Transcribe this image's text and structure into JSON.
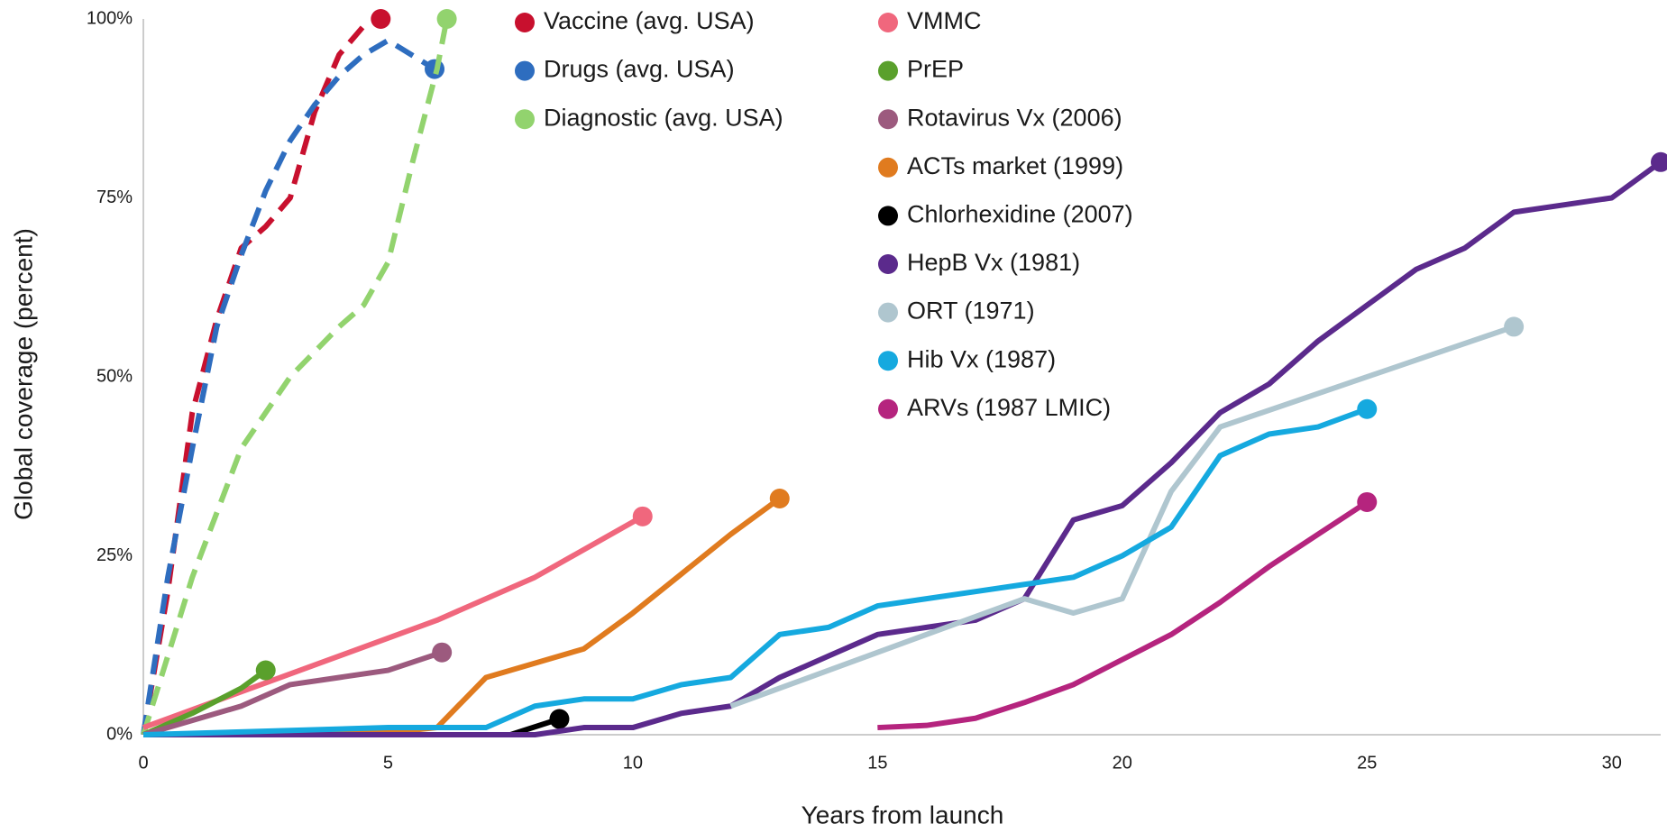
{
  "chart_data": {
    "type": "line",
    "xlabel": "Years from launch",
    "ylabel": "Global coverage (percent)",
    "xlim": [
      0,
      31
    ],
    "ylim": [
      0,
      100
    ],
    "xticks": [
      0,
      5,
      10,
      15,
      20,
      25,
      30
    ],
    "yticks": [
      {
        "value": 0,
        "label": "0%"
      },
      {
        "value": 25,
        "label": "25%"
      },
      {
        "value": 50,
        "label": "50%"
      },
      {
        "value": 75,
        "label": "75%"
      },
      {
        "value": 100,
        "label": "100%"
      }
    ],
    "grid": false,
    "legend": "top",
    "series": [
      {
        "name": "Vaccine (avg. USA)",
        "color": "#c8102e",
        "dashed": true,
        "x": [
          0,
          0.5,
          1,
          1.5,
          2,
          2.5,
          3,
          3.5,
          4,
          4.5,
          4.85
        ],
        "values": [
          0,
          20,
          45,
          58,
          68,
          71,
          75,
          87,
          95,
          99,
          100
        ]
      },
      {
        "name": "Drugs (avg. USA)",
        "color": "#2e6dbf",
        "dashed": true,
        "x": [
          0,
          0.5,
          1,
          1.5,
          2,
          2.5,
          3,
          3.5,
          4,
          4.5,
          5,
          5.95
        ],
        "values": [
          0,
          22,
          40,
          57,
          67,
          76,
          83,
          88,
          92,
          95,
          97,
          93
        ]
      },
      {
        "name": "Diagnostic (avg. USA)",
        "color": "#92d36e",
        "dashed": true,
        "x": [
          0,
          1,
          2,
          3,
          4,
          4.5,
          5,
          5.5,
          6,
          6.2
        ],
        "values": [
          0,
          22,
          40,
          50,
          57,
          60,
          66,
          80,
          93,
          100
        ]
      },
      {
        "name": "VMMC",
        "color": "#f0677d",
        "x": [
          0,
          2,
          4,
          6,
          8,
          10.2
        ],
        "values": [
          1,
          6,
          11,
          16,
          22,
          30.5
        ]
      },
      {
        "name": "PrEP",
        "color": "#5aa02c",
        "x": [
          0,
          1,
          2,
          2.5
        ],
        "values": [
          0,
          3,
          6.5,
          9
        ]
      },
      {
        "name": "Rotavirus Vx (2006)",
        "color": "#9c5a7e",
        "x": [
          0,
          1,
          2,
          3,
          4,
          5,
          6.1
        ],
        "values": [
          0,
          2,
          4,
          7,
          8,
          9,
          11.5
        ]
      },
      {
        "name": "ACTs market (1999)",
        "color": "#e07b1f",
        "x": [
          0,
          3,
          5,
          6,
          7,
          8,
          9,
          10,
          11,
          12,
          13
        ],
        "values": [
          0,
          0,
          0.3,
          1,
          8,
          10,
          12,
          17,
          22.5,
          28,
          33
        ]
      },
      {
        "name": "Chlorhexidine (2007)",
        "color": "#000000",
        "x": [
          7.5,
          8.5
        ],
        "values": [
          0,
          2.2
        ]
      },
      {
        "name": "HepB Vx (1981)",
        "color": "#5b2a8c",
        "x": [
          0,
          8,
          9,
          10,
          11,
          12,
          13,
          14,
          15,
          16,
          17,
          18,
          19,
          20,
          21,
          22,
          23,
          24,
          25,
          26,
          27,
          28,
          29,
          30,
          31
        ],
        "values": [
          0,
          0,
          1,
          1,
          3,
          4,
          8,
          11,
          14,
          15,
          16,
          19,
          30,
          32,
          38,
          45,
          49,
          55,
          60,
          65,
          68,
          73,
          74,
          75,
          80
        ]
      },
      {
        "name": "ORT (1971)",
        "color": "#afc6cf",
        "x": [
          12,
          18,
          19,
          20,
          21,
          22,
          28
        ],
        "values": [
          4,
          19,
          17,
          19,
          34,
          43,
          57
        ]
      },
      {
        "name": "Hib Vx (1987)",
        "color": "#15a9df",
        "x": [
          0,
          5,
          7,
          8,
          9,
          10,
          11,
          12,
          13,
          14,
          15,
          16,
          17,
          18,
          19,
          20,
          21,
          22,
          23,
          24,
          25
        ],
        "values": [
          0,
          1,
          1,
          4,
          5,
          5,
          7,
          8,
          14,
          15,
          18,
          19,
          20,
          21,
          22,
          25,
          29,
          39,
          42,
          43,
          45.5
        ]
      },
      {
        "name": "ARVs (1987 LMIC)",
        "color": "#b5247e",
        "x": [
          15,
          16,
          17,
          18,
          19,
          20,
          21,
          22,
          23,
          24,
          25
        ],
        "values": [
          1,
          1.3,
          2.3,
          4.5,
          7,
          10.5,
          14,
          18.5,
          23.5,
          28,
          32.5
        ]
      }
    ]
  }
}
